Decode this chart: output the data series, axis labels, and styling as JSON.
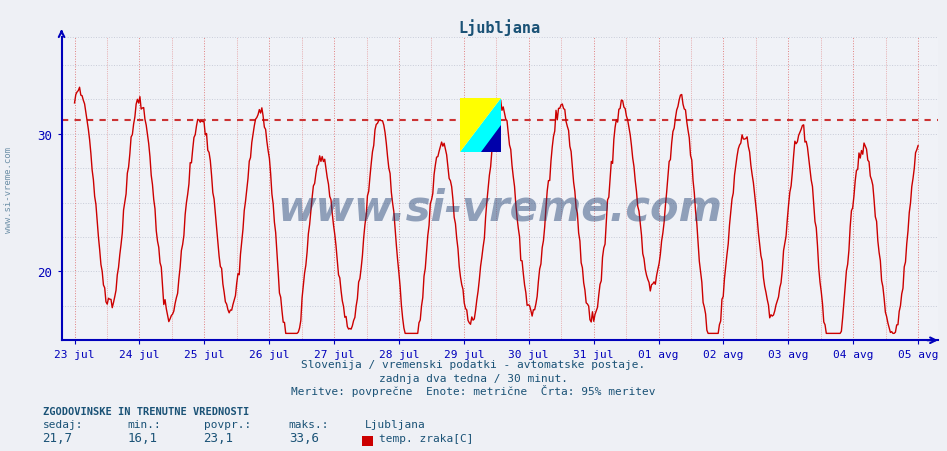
{
  "title": "Ljubljana",
  "title_color": "#1a5276",
  "background_color": "#eef0f5",
  "plot_bg_color": "#f0f2f7",
  "line_color": "#cc0000",
  "line_width": 1.0,
  "threshold_line": 31.0,
  "threshold_color": "#cc3333",
  "threshold_style": ":",
  "ymin": 15,
  "ymax": 37,
  "yticks": [
    20,
    30
  ],
  "x_labels": [
    "23 jul",
    "24 jul",
    "25 jul",
    "26 jul",
    "27 jul",
    "28 jul",
    "29 jul",
    "30 jul",
    "31 jul",
    "01 avg",
    "02 avg",
    "03 avg",
    "04 avg",
    "05 avg"
  ],
  "grid_h_color": "#c8ccd8",
  "grid_v_color": "#e08080",
  "grid_style": ":",
  "axis_color": "#0000bb",
  "subtitle1": "Slovenija / vremenski podatki - avtomatske postaje.",
  "subtitle2": "zadnja dva tedna / 30 minut.",
  "subtitle3": "Meritve: povprečne  Enote: metrične  Črta: 95% meritev",
  "subtitle_color": "#1a5276",
  "legend_title": "ZGODOVINSKE IN TRENUTNE VREDNOSTI",
  "legend_color": "#1a5276",
  "label_sedaj": "sedaj:",
  "label_min": "min.:",
  "label_povpr": "povpr.:",
  "label_maks": "maks.:",
  "val_sedaj": "21,7",
  "val_min": "16,1",
  "val_povpr": "23,1",
  "val_maks": "33,6",
  "series_name": "Ljubljana",
  "series_label": "temp. zraka[C]",
  "series_color": "#cc0000",
  "watermark": "www.si-vreme.com",
  "watermark_color": "#1a3a6e",
  "watermark_fontsize": 30,
  "ylabel_text": "www.si-vreme.com",
  "ylabel_color": "#1a5276"
}
